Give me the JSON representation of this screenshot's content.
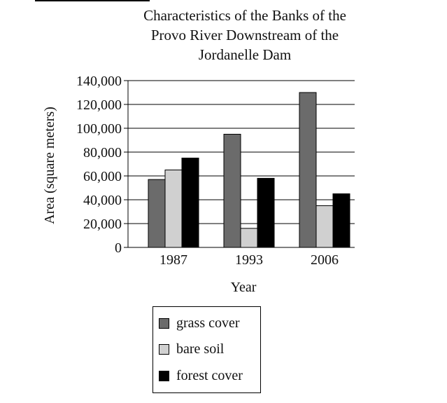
{
  "chart_data": {
    "type": "bar",
    "title": "Characteristics of the Banks of the Provo River Downstream of the Jordanelle Dam",
    "title_lines": [
      "Characteristics of the Banks of the",
      "Provo River Downstream of the",
      "Jordanelle Dam"
    ],
    "xlabel": "Year",
    "ylabel": "Area (square meters)",
    "categories": [
      "1987",
      "1993",
      "2006"
    ],
    "ylim": [
      0,
      140000
    ],
    "yticks": [
      0,
      20000,
      40000,
      60000,
      80000,
      100000,
      120000,
      140000
    ],
    "ytick_labels": [
      "0",
      "20,000",
      "40,000",
      "60,000",
      "80,000",
      "100,000",
      "120,000",
      "140,000"
    ],
    "grid": "horizontal",
    "legend_position": "bottom",
    "series": [
      {
        "name": "grass cover",
        "color": "#6b6b6b",
        "values": [
          57000,
          95000,
          130000
        ]
      },
      {
        "name": "bare soil",
        "color": "#d0d0d0",
        "values": [
          65000,
          16000,
          35000
        ]
      },
      {
        "name": "forest cover",
        "color": "#000000",
        "values": [
          75000,
          58000,
          45000
        ]
      }
    ]
  }
}
